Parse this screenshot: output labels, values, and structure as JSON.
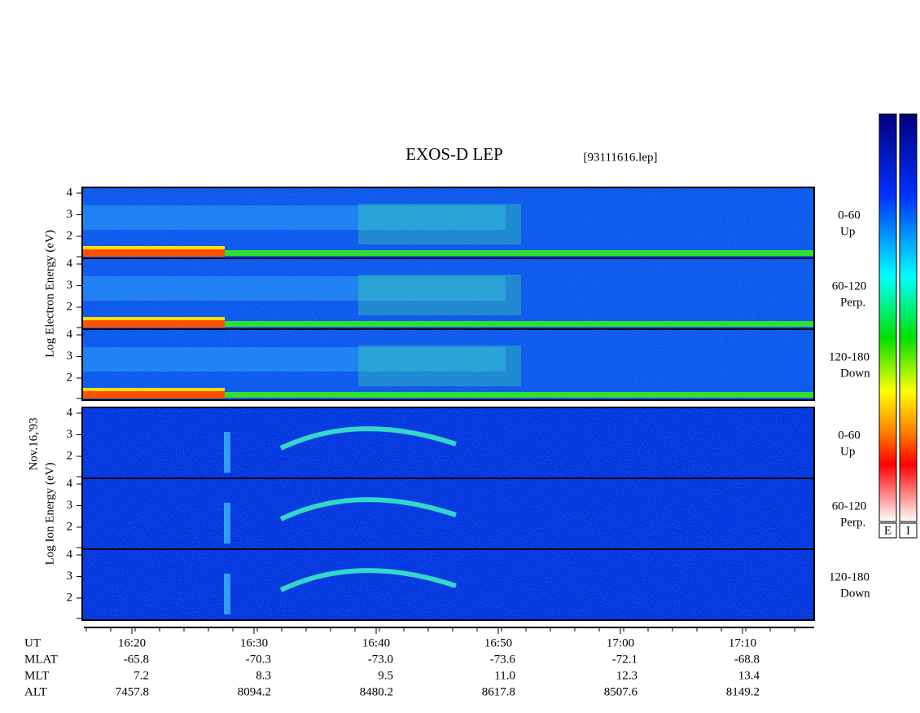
{
  "title": "EXOS-D LEP",
  "file": "[93111616.lep]",
  "date_label": "Nov.16,'93",
  "groups": [
    {
      "ylabel": "Log Electron Energy (eV)",
      "panels": [
        {
          "yticks": [
            "4",
            "3",
            "2"
          ],
          "angle": "0-60",
          "direction": "Up"
        },
        {
          "yticks": [
            "4",
            "3",
            "2"
          ],
          "angle": "60-120",
          "direction": "Perp."
        },
        {
          "yticks": [
            "4",
            "3",
            "2"
          ],
          "angle": "120-180",
          "direction": "Down"
        }
      ]
    },
    {
      "ylabel": "Log Ion Energy (eV)",
      "panels": [
        {
          "yticks": [
            "4",
            "3",
            "2"
          ],
          "angle": "0-60",
          "direction": "Up"
        },
        {
          "yticks": [
            "4",
            "3",
            "2"
          ],
          "angle": "60-120",
          "direction": "Perp."
        },
        {
          "yticks": [
            "4",
            "3",
            "2"
          ],
          "angle": "120-180",
          "direction": "Down"
        }
      ]
    }
  ],
  "rows": [
    {
      "label": "UT",
      "values": [
        "16:20",
        "16:30",
        "16:40",
        "16:50",
        "17:00",
        "17:10"
      ]
    },
    {
      "label": "MLAT",
      "values": [
        "-65.8",
        "-70.3",
        "-73.0",
        "-73.6",
        "-72.1",
        "-68.8"
      ]
    },
    {
      "label": "MLT",
      "values": [
        "7.2",
        "8.3",
        "9.5",
        "11.0",
        "12.3",
        "13.4"
      ]
    },
    {
      "label": "ALT",
      "values": [
        "7457.8",
        "8094.2",
        "8480.2",
        "8617.8",
        "8507.6",
        "8149.2"
      ]
    }
  ],
  "colorbars": [
    "E",
    "I"
  ]
}
